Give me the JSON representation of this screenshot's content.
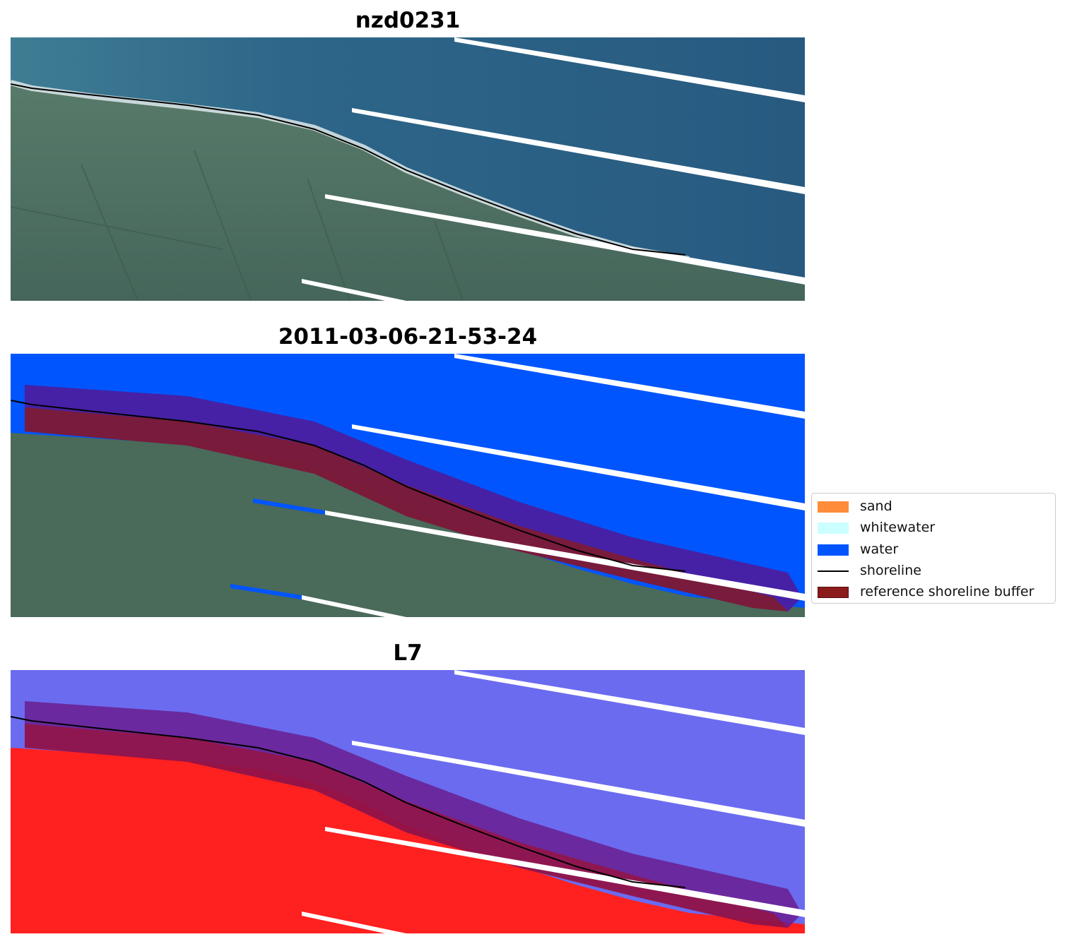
{
  "titles": {
    "panel1": "nzd0231",
    "panel2": "2011-03-06-21-53-24",
    "panel3": "L7"
  },
  "legend": {
    "items": [
      {
        "label": "sand",
        "color": "#ff8c3a",
        "kind": "patch"
      },
      {
        "label": "whitewater",
        "color": "#ccffff",
        "kind": "patch"
      },
      {
        "label": "water",
        "color": "#0055ff",
        "kind": "patch"
      },
      {
        "label": "shoreline",
        "color": "#000000",
        "kind": "line"
      },
      {
        "label": "reference shoreline buffer",
        "color": "#8b1a1a",
        "kind": "patch"
      }
    ]
  },
  "colors": {
    "ocean_rgb": "#2b5f85",
    "land_rgb": "#4a6a5a",
    "water_class": "#0055ff",
    "buffer": "#8b1a1a",
    "mndwi_positive": "#6b6bf0",
    "mndwi_negative": "#ff2020"
  }
}
